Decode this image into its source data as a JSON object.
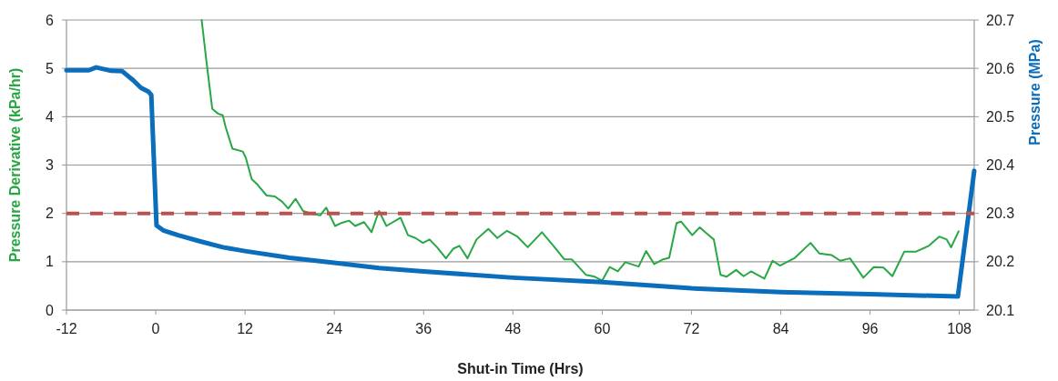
{
  "chart_data": {
    "type": "line",
    "xlabel": "Shut-in Time (Hrs)",
    "ylabel": "Pressure Derivative (kPa/hr)",
    "y2label": "Pressure (MPa)",
    "xlim": [
      -12,
      110
    ],
    "xticks": [
      -12,
      0,
      12,
      24,
      36,
      48,
      60,
      72,
      84,
      96,
      108
    ],
    "ylim": [
      0,
      6
    ],
    "yticks": [
      0,
      1,
      2,
      3,
      4,
      5,
      6
    ],
    "y2lim": [
      20.1,
      20.7
    ],
    "y2ticks": [
      20.1,
      20.2,
      20.3,
      20.4,
      20.5,
      20.6,
      20.7
    ],
    "grid": "y",
    "marker": "none",
    "line_style": "solid",
    "ref_lines": [
      {
        "axis": "y",
        "value": 2,
        "color": "#c0504d",
        "line_style": "dashed"
      }
    ],
    "series": [
      {
        "color": "#28a745",
        "x": [
          6.17,
          6.8,
          7.6,
          8.4,
          9.0,
          9.4,
          10.3,
          11.7,
          12.1,
          12.9,
          13.7,
          14.9,
          16.0,
          17.0,
          17.8,
          18.8,
          19.8,
          21.1,
          22.1,
          22.9,
          24.1,
          24.9,
          26.0,
          26.8,
          28.0,
          29.0,
          30.0,
          31.0,
          32.9,
          33.9,
          34.9,
          35.9,
          36.8,
          37.8,
          39.0,
          40.0,
          40.8,
          41.9,
          43.1,
          44.7,
          45.9,
          47.2,
          48.6,
          50.0,
          51.9,
          53.5,
          54.9,
          55.9,
          57.8,
          59.0,
          60.0,
          61.0,
          62.1,
          63.1,
          64.9,
          65.9,
          67.0,
          68.2,
          69.0,
          70.0,
          70.6,
          72.1,
          73.1,
          74.3,
          75.0,
          75.9,
          76.7,
          78.0,
          79.0,
          80.0,
          81.8,
          82.9,
          83.9,
          85.9,
          88.0,
          89.2,
          90.8,
          92.0,
          93.3,
          95.1,
          96.5,
          97.8,
          99.0,
          100.6,
          102.2,
          103.9,
          105.3,
          106.3,
          106.9,
          107.9
        ],
        "values": [
          6.0,
          5.16,
          4.16,
          4.06,
          4.03,
          3.78,
          3.34,
          3.28,
          3.15,
          2.71,
          2.59,
          2.37,
          2.35,
          2.24,
          2.1,
          2.3,
          2.05,
          1.99,
          1.96,
          2.12,
          1.74,
          1.8,
          1.85,
          1.74,
          1.82,
          1.61,
          2.05,
          1.74,
          1.91,
          1.55,
          1.49,
          1.39,
          1.46,
          1.3,
          1.07,
          1.27,
          1.33,
          1.07,
          1.46,
          1.68,
          1.49,
          1.64,
          1.52,
          1.3,
          1.61,
          1.32,
          1.05,
          1.05,
          0.73,
          0.69,
          0.61,
          0.89,
          0.8,
          0.99,
          0.9,
          1.22,
          0.95,
          1.05,
          1.08,
          1.8,
          1.83,
          1.55,
          1.71,
          1.55,
          1.46,
          0.73,
          0.69,
          0.83,
          0.7,
          0.8,
          0.65,
          1.02,
          0.92,
          1.08,
          1.39,
          1.17,
          1.14,
          1.02,
          1.07,
          0.67,
          0.89,
          0.88,
          0.7,
          1.21,
          1.21,
          1.33,
          1.52,
          1.46,
          1.3,
          1.63
        ]
      },
      {
        "color": "#0a6ebd",
        "axis": "y2",
        "x": [
          -12,
          -9,
          -8,
          -6,
          -4.5,
          -3,
          -2,
          -1,
          -0.6,
          0.1,
          1,
          3,
          6,
          9,
          12,
          18,
          24,
          30,
          36,
          48,
          60,
          72,
          84,
          96,
          107.8,
          110
        ],
        "values": [
          20.596,
          20.596,
          20.602,
          20.595,
          20.594,
          20.575,
          20.56,
          20.552,
          20.545,
          20.275,
          20.265,
          20.255,
          20.242,
          20.23,
          20.222,
          20.208,
          20.198,
          20.187,
          20.18,
          20.167,
          20.158,
          20.145,
          20.137,
          20.133,
          20.128,
          20.388
        ]
      }
    ]
  }
}
